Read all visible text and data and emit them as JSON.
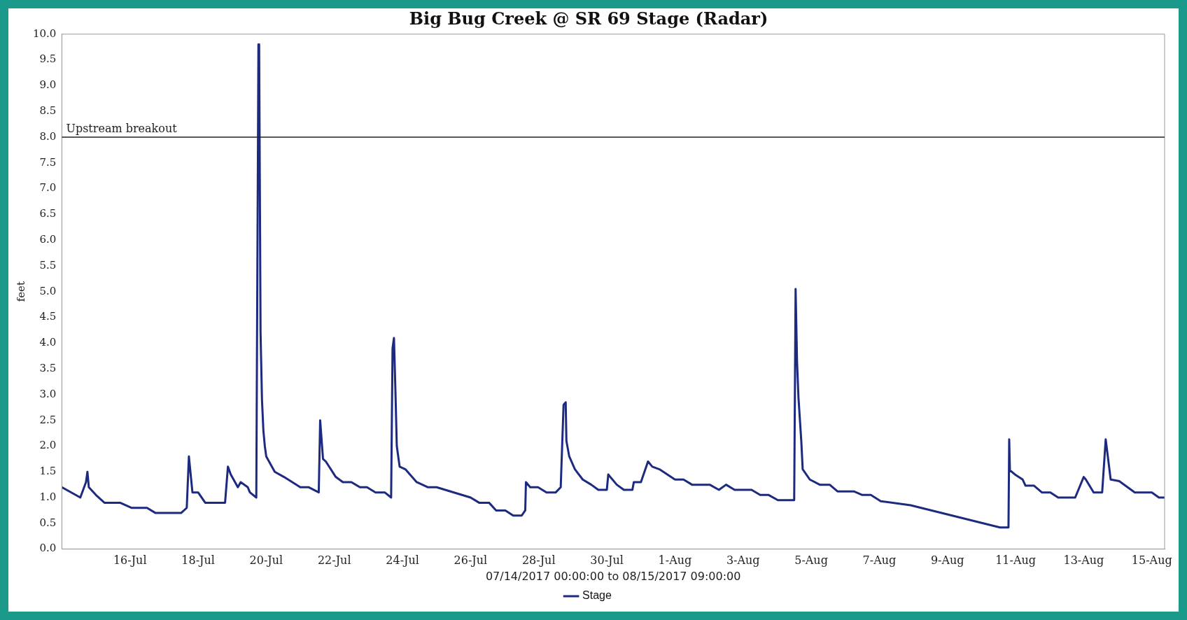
{
  "chart_data": {
    "type": "line",
    "title": "Big Bug Creek @ SR 69 Stage (Radar)",
    "xlabel": "07/14/2017 00:00:00 to 08/15/2017 09:00:00",
    "ylabel": "feet",
    "xlim": [
      "2017-07-14T00:00",
      "2017-08-15T09:00"
    ],
    "xticks": [
      {
        "value": "2017-07-16",
        "label": "16-Jul"
      },
      {
        "value": "2017-07-18",
        "label": "18-Jul"
      },
      {
        "value": "2017-07-20",
        "label": "20-Jul"
      },
      {
        "value": "2017-07-22",
        "label": "22-Jul"
      },
      {
        "value": "2017-07-24",
        "label": "24-Jul"
      },
      {
        "value": "2017-07-26",
        "label": "26-Jul"
      },
      {
        "value": "2017-07-28",
        "label": "28-Jul"
      },
      {
        "value": "2017-07-30",
        "label": "30-Jul"
      },
      {
        "value": "2017-08-01",
        "label": "1-Aug"
      },
      {
        "value": "2017-08-03",
        "label": "3-Aug"
      },
      {
        "value": "2017-08-05",
        "label": "5-Aug"
      },
      {
        "value": "2017-08-07",
        "label": "7-Aug"
      },
      {
        "value": "2017-08-09",
        "label": "9-Aug"
      },
      {
        "value": "2017-08-11",
        "label": "11-Aug"
      },
      {
        "value": "2017-08-13",
        "label": "13-Aug"
      },
      {
        "value": "2017-08-15",
        "label": "15-Aug"
      }
    ],
    "ylim": [
      0,
      10
    ],
    "yticks": [
      {
        "value": 0,
        "label": "0.0"
      },
      {
        "value": 0.5,
        "label": "0.5"
      },
      {
        "value": 1,
        "label": "1.0"
      },
      {
        "value": 1.5,
        "label": "1.5"
      },
      {
        "value": 2,
        "label": "2.0"
      },
      {
        "value": 2.5,
        "label": "2.5"
      },
      {
        "value": 3,
        "label": "3.0"
      },
      {
        "value": 3.5,
        "label": "3.5"
      },
      {
        "value": 4,
        "label": "4.0"
      },
      {
        "value": 4.5,
        "label": "4.5"
      },
      {
        "value": 5,
        "label": "5.0"
      },
      {
        "value": 5.5,
        "label": "5.5"
      },
      {
        "value": 6,
        "label": "6.0"
      },
      {
        "value": 6.5,
        "label": "6.5"
      },
      {
        "value": 7,
        "label": "7.0"
      },
      {
        "value": 7.5,
        "label": "7.5"
      },
      {
        "value": 8,
        "label": "8.0"
      },
      {
        "value": 8.5,
        "label": "8.5"
      },
      {
        "value": 9,
        "label": "9.0"
      },
      {
        "value": 9.5,
        "label": "9.5"
      },
      {
        "value": 10,
        "label": "10.0"
      }
    ],
    "grid": false,
    "legend": "bottom",
    "marker": "none",
    "line_style": "solid",
    "ref_lines": [
      {
        "axis": "y",
        "value": 8,
        "label": "Upstream breakout",
        "color": "#222222"
      }
    ],
    "series": [
      {
        "name": "Stage",
        "color": "#1c2a80",
        "x": [
          "2017-07-14T00:00",
          "2017-07-14T13:00",
          "2017-07-14T17:00",
          "2017-07-14T18:00",
          "2017-07-14T19:00",
          "2017-07-15T00:00",
          "2017-07-15T06:00",
          "2017-07-15T17:00",
          "2017-07-16T01:00",
          "2017-07-16T12:00",
          "2017-07-16T18:00",
          "2017-07-17T12:00",
          "2017-07-17T16:00",
          "2017-07-17T17:30",
          "2017-07-17T20:00",
          "2017-07-18T00:00",
          "2017-07-18T05:00",
          "2017-07-18T19:00",
          "2017-07-18T21:00",
          "2017-07-18T23:00",
          "2017-07-19T04:00",
          "2017-07-19T06:00",
          "2017-07-19T11:00",
          "2017-07-19T12:30",
          "2017-07-19T17:00",
          "2017-07-19T18:30",
          "2017-07-19T19:00",
          "2017-07-19T20:00",
          "2017-07-19T21:00",
          "2017-07-19T22:00",
          "2017-07-19T23:00",
          "2017-07-20T00:00",
          "2017-07-20T06:00",
          "2017-07-20T12:30",
          "2017-07-21T00:00",
          "2017-07-21T06:00",
          "2017-07-21T13:00",
          "2017-07-21T14:00",
          "2017-07-21T16:00",
          "2017-07-21T18:00",
          "2017-07-22T01:00",
          "2017-07-22T06:00",
          "2017-07-22T12:00",
          "2017-07-22T18:00",
          "2017-07-22T23:00",
          "2017-07-23T05:00",
          "2017-07-23T11:30",
          "2017-07-23T16:00",
          "2017-07-23T17:00",
          "2017-07-23T18:00",
          "2017-07-23T19:00",
          "2017-07-23T20:00",
          "2017-07-23T22:00",
          "2017-07-24T02:00",
          "2017-07-24T10:00",
          "2017-07-24T18:00",
          "2017-07-25T00:00",
          "2017-07-26T00:00",
          "2017-07-26T06:00",
          "2017-07-26T13:00",
          "2017-07-26T18:00",
          "2017-07-27T00:30",
          "2017-07-27T06:00",
          "2017-07-27T12:00",
          "2017-07-27T14:30",
          "2017-07-27T15:00",
          "2017-07-27T18:00",
          "2017-07-27T23:30",
          "2017-07-28T05:30",
          "2017-07-28T12:00",
          "2017-07-28T15:30",
          "2017-07-28T17:30",
          "2017-07-28T19:00",
          "2017-07-28T19:30",
          "2017-07-28T21:30",
          "2017-07-29T01:30",
          "2017-07-29T07:00",
          "2017-07-29T13:00",
          "2017-07-29T18:00",
          "2017-07-30T00:00",
          "2017-07-30T01:00",
          "2017-07-30T03:00",
          "2017-07-30T07:00",
          "2017-07-30T12:00",
          "2017-07-30T18:00",
          "2017-07-30T19:00",
          "2017-07-31T00:00",
          "2017-07-31T05:00",
          "2017-07-31T08:00",
          "2017-07-31T13:00",
          "2017-08-01T00:00",
          "2017-08-01T06:00",
          "2017-08-01T12:00",
          "2017-08-02T00:30",
          "2017-08-02T07:00",
          "2017-08-02T12:00",
          "2017-08-02T18:00",
          "2017-08-03T06:00",
          "2017-08-03T12:00",
          "2017-08-03T18:00",
          "2017-08-04T00:30",
          "2017-08-04T12:00",
          "2017-08-04T13:00",
          "2017-08-04T14:00",
          "2017-08-04T15:00",
          "2017-08-04T17:00",
          "2017-08-04T18:00",
          "2017-08-04T23:00",
          "2017-08-05T06:00",
          "2017-08-05T13:00",
          "2017-08-05T18:30",
          "2017-08-06T06:00",
          "2017-08-06T12:00",
          "2017-08-06T18:00",
          "2017-08-07T01:00",
          "2017-08-07T22:00",
          "2017-08-10T13:00",
          "2017-08-10T19:00",
          "2017-08-10T19:30",
          "2017-08-10T20:00",
          "2017-08-10T23:30",
          "2017-08-11T05:00",
          "2017-08-11T07:00",
          "2017-08-11T13:00",
          "2017-08-11T18:30",
          "2017-08-12T00:30",
          "2017-08-12T06:00",
          "2017-08-12T18:00",
          "2017-08-13T00:00",
          "2017-08-13T01:30",
          "2017-08-13T07:00",
          "2017-08-13T13:00",
          "2017-08-13T15:30",
          "2017-08-13T19:00",
          "2017-08-14T01:00",
          "2017-08-14T12:00",
          "2017-08-15T00:00",
          "2017-08-15T05:00",
          "2017-08-15T09:00"
        ],
        "values": [
          1.2,
          1.0,
          1.3,
          1.5,
          1.2,
          1.05,
          0.9,
          0.9,
          0.8,
          0.8,
          0.7,
          0.7,
          0.8,
          1.8,
          1.1,
          1.1,
          0.9,
          0.9,
          1.6,
          1.45,
          1.2,
          1.3,
          1.2,
          1.1,
          1.0,
          9.8,
          9.8,
          4.2,
          2.9,
          2.3,
          2.0,
          1.8,
          1.5,
          1.4,
          1.2,
          1.2,
          1.1,
          2.5,
          1.75,
          1.7,
          1.4,
          1.3,
          1.3,
          1.2,
          1.2,
          1.1,
          1.1,
          1.0,
          3.9,
          4.1,
          3.1,
          2.0,
          1.6,
          1.55,
          1.3,
          1.2,
          1.2,
          1.0,
          0.9,
          0.9,
          0.75,
          0.75,
          0.65,
          0.65,
          0.75,
          1.3,
          1.2,
          1.2,
          1.1,
          1.1,
          1.2,
          2.8,
          2.85,
          2.1,
          1.8,
          1.55,
          1.35,
          1.25,
          1.15,
          1.15,
          1.45,
          1.38,
          1.25,
          1.15,
          1.15,
          1.3,
          1.3,
          1.7,
          1.6,
          1.55,
          1.35,
          1.35,
          1.25,
          1.25,
          1.15,
          1.25,
          1.15,
          1.15,
          1.05,
          1.05,
          0.95,
          0.95,
          5.05,
          3.65,
          2.95,
          2.1,
          1.55,
          1.35,
          1.25,
          1.25,
          1.12,
          1.12,
          1.05,
          1.05,
          0.93,
          0.85,
          0.42,
          0.42,
          2.13,
          1.53,
          1.45,
          1.35,
          1.23,
          1.23,
          1.1,
          1.1,
          1.0,
          1.0,
          1.4,
          1.35,
          1.1,
          1.1,
          2.13,
          1.35,
          1.32,
          1.1,
          1.1,
          1.0,
          1.0
        ]
      }
    ]
  }
}
